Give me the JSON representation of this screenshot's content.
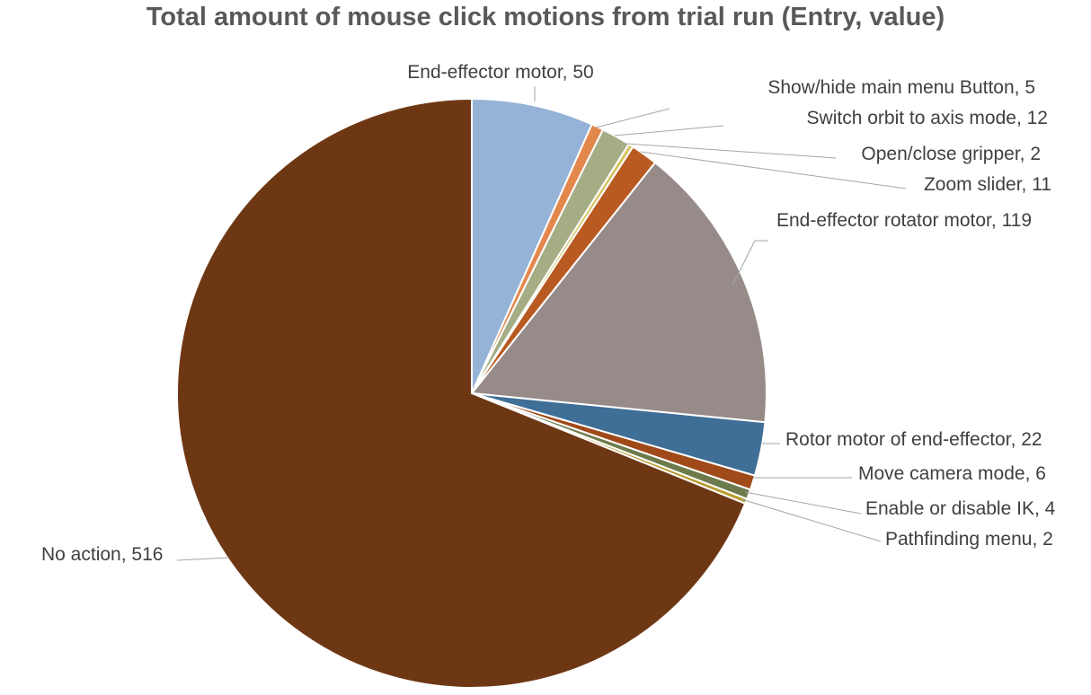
{
  "chart_data": {
    "type": "pie",
    "title": "Total amount of mouse click motions from trial run (Entry, value)",
    "slices": [
      {
        "name": "End-effector motor",
        "value": 50,
        "label": "End-effector motor, 50",
        "color": "#95B3D7"
      },
      {
        "name": "Show/hide main menu Button",
        "value": 5,
        "label": "Show/hide main menu Button, 5",
        "color": "#E3884D"
      },
      {
        "name": "Switch orbit to axis mode",
        "value": 12,
        "label": "Switch orbit to axis mode, 12",
        "color": "#A5AD85"
      },
      {
        "name": "Open/close gripper",
        "value": 2,
        "label": "Open/close gripper, 2",
        "color": "#D6C564"
      },
      {
        "name": "Zoom slider",
        "value": 11,
        "label": "Zoom slider, 11",
        "color": "#B85A22"
      },
      {
        "name": "End-effector rotator motor",
        "value": 119,
        "label": "End-effector rotator motor, 119",
        "color": "#978B8A"
      },
      {
        "name": "Rotor motor of end-effector",
        "value": 22,
        "label": "Rotor motor of end-effector, 22",
        "color": "#3F6E96"
      },
      {
        "name": "Move camera mode",
        "value": 6,
        "label": "Move camera mode, 6",
        "color": "#A04A1A"
      },
      {
        "name": "Enable or disable IK",
        "value": 4,
        "label": "Enable or disable IK, 4",
        "color": "#6D7A4B"
      },
      {
        "name": "Pathfinding menu",
        "value": 2,
        "label": "Pathfinding menu, 2",
        "color": "#B89B2E"
      },
      {
        "name": "No action",
        "value": 516,
        "label": "No action, 516",
        "color": "#6E3714"
      }
    ],
    "legend": "none",
    "data_labels": "outside with leader lines",
    "start_angle": "12 o'clock, clockwise"
  }
}
